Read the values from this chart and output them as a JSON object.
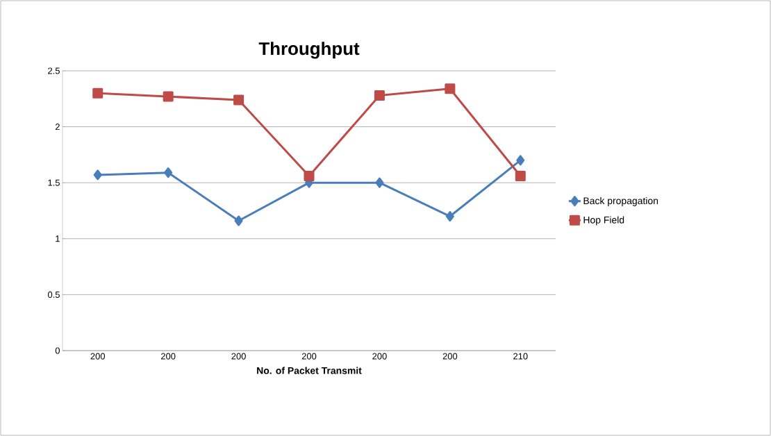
{
  "chart_data": {
    "type": "line",
    "title": "Throughput",
    "xlabel": "No. of Packet Transmit",
    "categories": [
      "200",
      "200",
      "200",
      "200",
      "200",
      "200",
      "210"
    ],
    "series": [
      {
        "name": "Back propagation",
        "color": "#4a7ebb",
        "marker": "diamond",
        "values": [
          1.57,
          1.59,
          1.16,
          1.5,
          1.5,
          1.2,
          1.7
        ]
      },
      {
        "name": "Hop Field",
        "color": "#be4b48",
        "marker": "square",
        "values": [
          2.3,
          2.27,
          2.24,
          1.56,
          2.28,
          2.34,
          1.56
        ]
      }
    ],
    "ylim": [
      0,
      2.5
    ],
    "yticks": [
      0,
      0.5,
      1,
      1.5,
      2,
      2.5
    ],
    "grid": "y",
    "legend": "right"
  }
}
